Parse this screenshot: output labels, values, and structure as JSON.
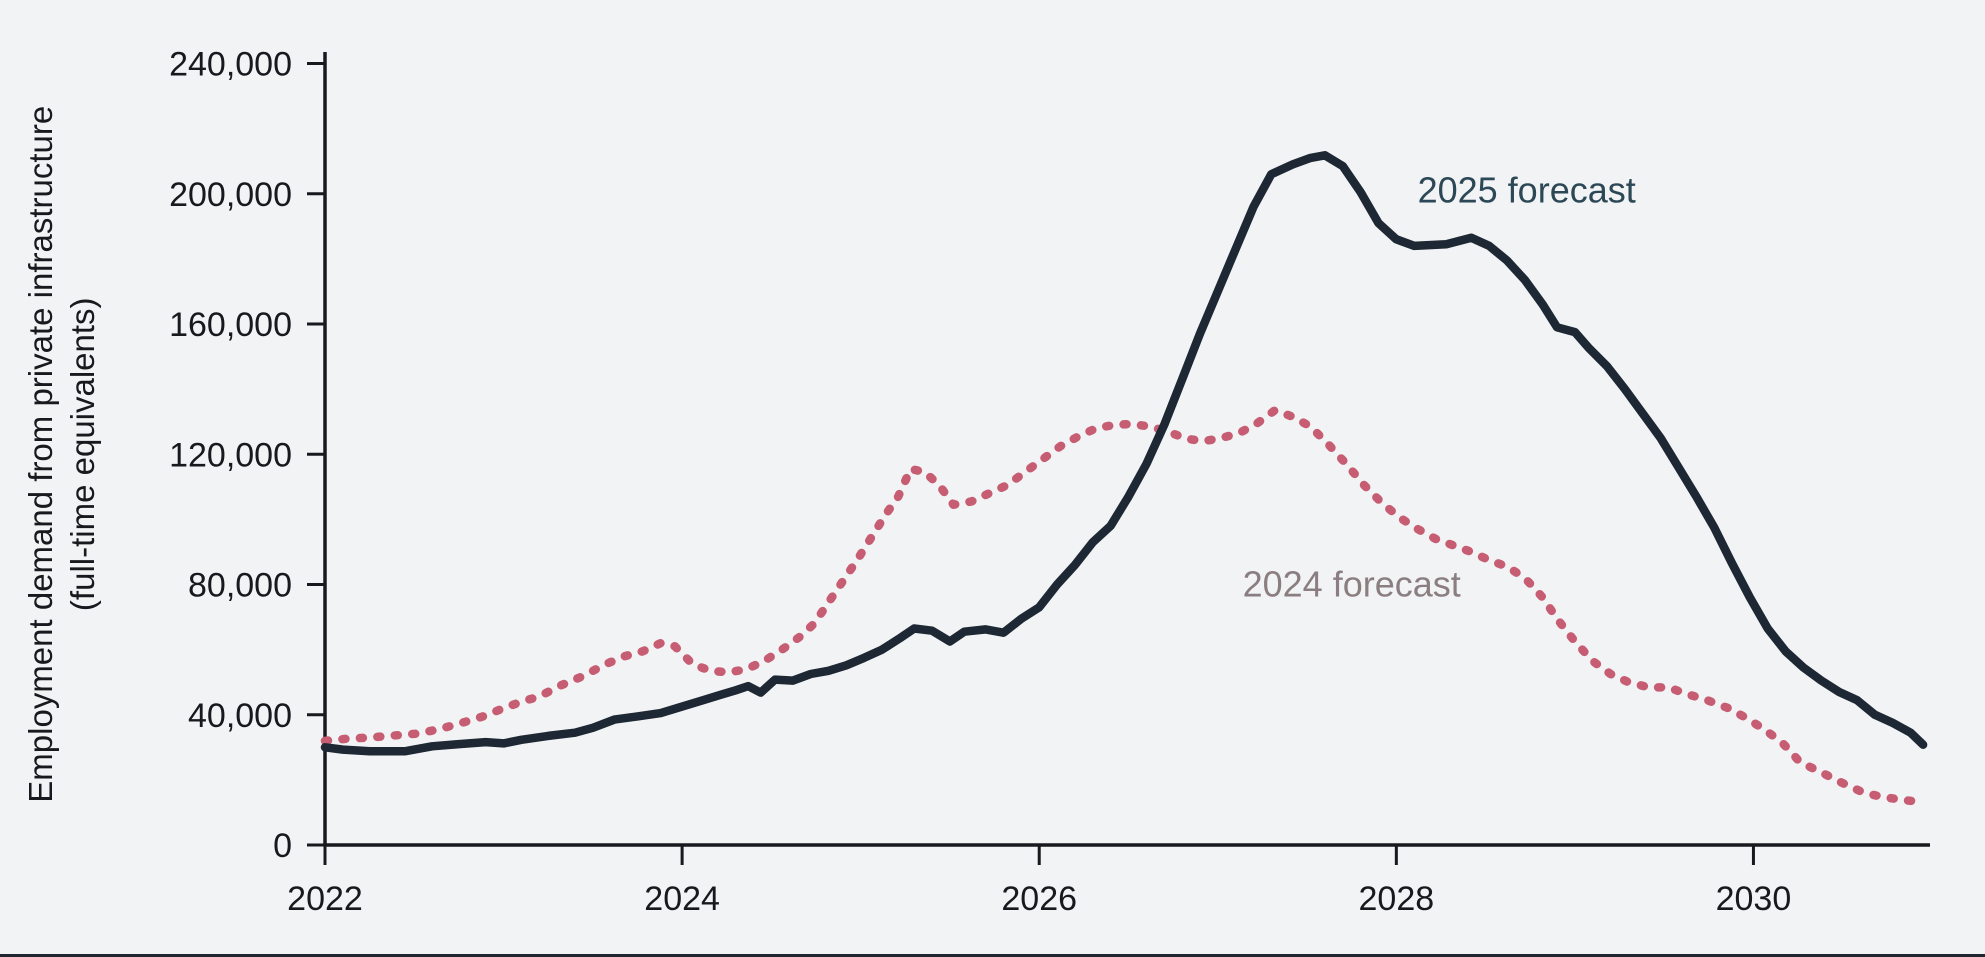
{
  "figure": {
    "background": "#f2f3f4",
    "bottom_border_color": "#20262e"
  },
  "chart_data": {
    "type": "line",
    "title": "",
    "xlabel": "",
    "ylabel_lines": [
      "Employment demand from private infrastructure",
      "(full-time equivalents)"
    ],
    "xlim": [
      2022,
      2031
    ],
    "ylim": [
      0,
      240000
    ],
    "grid": false,
    "legend_position": "inline-labels",
    "axis_color": "#16191d",
    "text_color": "#16191d",
    "x_ticks": [
      {
        "value": 2022,
        "label": "2022"
      },
      {
        "value": 2024,
        "label": "2024"
      },
      {
        "value": 2026,
        "label": "2026"
      },
      {
        "value": 2028,
        "label": "2028"
      },
      {
        "value": 2030,
        "label": "2030"
      }
    ],
    "y_ticks": [
      {
        "value": 0,
        "label": "0"
      },
      {
        "value": 40000,
        "label": "40,000"
      },
      {
        "value": 80000,
        "label": "80,000"
      },
      {
        "value": 120000,
        "label": "120,000"
      },
      {
        "value": 160000,
        "label": "160,000"
      },
      {
        "value": 200000,
        "label": "200,000"
      },
      {
        "value": 240000,
        "label": "240,000"
      }
    ],
    "series": [
      {
        "name": "2024 forecast",
        "style": "dotted",
        "color": "#c65d72",
        "points": [
          [
            2022.0,
            32000
          ],
          [
            2022.12,
            32600
          ],
          [
            2022.25,
            33000
          ],
          [
            2022.4,
            33700
          ],
          [
            2022.52,
            34200
          ],
          [
            2022.64,
            35600
          ],
          [
            2022.76,
            37400
          ],
          [
            2022.88,
            39400
          ],
          [
            2023.0,
            42000
          ],
          [
            2023.1,
            44000
          ],
          [
            2023.2,
            45600
          ],
          [
            2023.32,
            49000
          ],
          [
            2023.45,
            52000
          ],
          [
            2023.57,
            55500
          ],
          [
            2023.68,
            58000
          ],
          [
            2023.78,
            59500
          ],
          [
            2023.88,
            62000
          ],
          [
            2023.96,
            61000
          ],
          [
            2024.06,
            55500
          ],
          [
            2024.16,
            53500
          ],
          [
            2024.26,
            53000
          ],
          [
            2024.36,
            54000
          ],
          [
            2024.46,
            56500
          ],
          [
            2024.56,
            60000
          ],
          [
            2024.66,
            64000
          ],
          [
            2024.74,
            68000
          ],
          [
            2024.82,
            74500
          ],
          [
            2024.9,
            81000
          ],
          [
            2024.98,
            87500
          ],
          [
            2025.06,
            94500
          ],
          [
            2025.14,
            101500
          ],
          [
            2025.21,
            107000
          ],
          [
            2025.28,
            115500
          ],
          [
            2025.36,
            114500
          ],
          [
            2025.44,
            110500
          ],
          [
            2025.52,
            104500
          ],
          [
            2025.62,
            105500
          ],
          [
            2025.72,
            108000
          ],
          [
            2025.82,
            110500
          ],
          [
            2025.92,
            114500
          ],
          [
            2026.02,
            118500
          ],
          [
            2026.12,
            122500
          ],
          [
            2026.22,
            125500
          ],
          [
            2026.32,
            128000
          ],
          [
            2026.42,
            129000
          ],
          [
            2026.52,
            129300
          ],
          [
            2026.62,
            128500
          ],
          [
            2026.72,
            127000
          ],
          [
            2026.82,
            124800
          ],
          [
            2026.92,
            124000
          ],
          [
            2027.02,
            125000
          ],
          [
            2027.12,
            126500
          ],
          [
            2027.22,
            129500
          ],
          [
            2027.32,
            133500
          ],
          [
            2027.42,
            131500
          ],
          [
            2027.52,
            128500
          ],
          [
            2027.62,
            123000
          ],
          [
            2027.72,
            117000
          ],
          [
            2027.82,
            110500
          ],
          [
            2027.92,
            105000
          ],
          [
            2028.02,
            100500
          ],
          [
            2028.12,
            97000
          ],
          [
            2028.22,
            94000
          ],
          [
            2028.32,
            92000
          ],
          [
            2028.42,
            90000
          ],
          [
            2028.52,
            87500
          ],
          [
            2028.62,
            85500
          ],
          [
            2028.72,
            82000
          ],
          [
            2028.82,
            76000
          ],
          [
            2028.9,
            69500
          ],
          [
            2029.0,
            62500
          ],
          [
            2029.1,
            56500
          ],
          [
            2029.2,
            52500
          ],
          [
            2029.3,
            50000
          ],
          [
            2029.42,
            48300
          ],
          [
            2029.52,
            48500
          ],
          [
            2029.62,
            46500
          ],
          [
            2029.74,
            44500
          ],
          [
            2029.86,
            42000
          ],
          [
            2029.96,
            39000
          ],
          [
            2030.06,
            35500
          ],
          [
            2030.16,
            31500
          ],
          [
            2030.26,
            25500
          ],
          [
            2030.38,
            22300
          ],
          [
            2030.5,
            19000
          ],
          [
            2030.62,
            16000
          ],
          [
            2030.72,
            14800
          ],
          [
            2030.84,
            13800
          ],
          [
            2030.93,
            13300
          ]
        ]
      },
      {
        "name": "2025 forecast",
        "style": "solid",
        "color": "#1d2834",
        "points": [
          [
            2022.0,
            30000
          ],
          [
            2022.1,
            29300
          ],
          [
            2022.25,
            28800
          ],
          [
            2022.45,
            28800
          ],
          [
            2022.6,
            30300
          ],
          [
            2022.75,
            31000
          ],
          [
            2022.9,
            31600
          ],
          [
            2023.0,
            31200
          ],
          [
            2023.1,
            32300
          ],
          [
            2023.25,
            33500
          ],
          [
            2023.4,
            34500
          ],
          [
            2023.5,
            36000
          ],
          [
            2023.62,
            38500
          ],
          [
            2023.75,
            39500
          ],
          [
            2023.88,
            40500
          ],
          [
            2024.0,
            42500
          ],
          [
            2024.12,
            44500
          ],
          [
            2024.22,
            46200
          ],
          [
            2024.3,
            47500
          ],
          [
            2024.37,
            48800
          ],
          [
            2024.44,
            46800
          ],
          [
            2024.52,
            50800
          ],
          [
            2024.62,
            50500
          ],
          [
            2024.72,
            52500
          ],
          [
            2024.82,
            53500
          ],
          [
            2024.92,
            55200
          ],
          [
            2025.02,
            57500
          ],
          [
            2025.12,
            60000
          ],
          [
            2025.22,
            63500
          ],
          [
            2025.3,
            66500
          ],
          [
            2025.4,
            65800
          ],
          [
            2025.5,
            62500
          ],
          [
            2025.58,
            65500
          ],
          [
            2025.7,
            66200
          ],
          [
            2025.8,
            65200
          ],
          [
            2025.9,
            69500
          ],
          [
            2026.0,
            73000
          ],
          [
            2026.1,
            80000
          ],
          [
            2026.2,
            86000
          ],
          [
            2026.3,
            93000
          ],
          [
            2026.4,
            98000
          ],
          [
            2026.5,
            107000
          ],
          [
            2026.6,
            117000
          ],
          [
            2026.7,
            129000
          ],
          [
            2026.8,
            143000
          ],
          [
            2026.9,
            157000
          ],
          [
            2027.0,
            170000
          ],
          [
            2027.1,
            183000
          ],
          [
            2027.2,
            196000
          ],
          [
            2027.3,
            206000
          ],
          [
            2027.42,
            209000
          ],
          [
            2027.52,
            211000
          ],
          [
            2027.6,
            211800
          ],
          [
            2027.7,
            208500
          ],
          [
            2027.8,
            200500
          ],
          [
            2027.9,
            191000
          ],
          [
            2028.0,
            186000
          ],
          [
            2028.1,
            184000
          ],
          [
            2028.28,
            184500
          ],
          [
            2028.42,
            186500
          ],
          [
            2028.52,
            184000
          ],
          [
            2028.62,
            179500
          ],
          [
            2028.72,
            173500
          ],
          [
            2028.82,
            166000
          ],
          [
            2028.9,
            159000
          ],
          [
            2029.0,
            157500
          ],
          [
            2029.08,
            152500
          ],
          [
            2029.18,
            147000
          ],
          [
            2029.28,
            140000
          ],
          [
            2029.38,
            132500
          ],
          [
            2029.48,
            125000
          ],
          [
            2029.58,
            116000
          ],
          [
            2029.68,
            107000
          ],
          [
            2029.78,
            97500
          ],
          [
            2029.88,
            86500
          ],
          [
            2029.98,
            76000
          ],
          [
            2030.08,
            66500
          ],
          [
            2030.18,
            59500
          ],
          [
            2030.28,
            54500
          ],
          [
            2030.38,
            50500
          ],
          [
            2030.48,
            47000
          ],
          [
            2030.58,
            44500
          ],
          [
            2030.68,
            40000
          ],
          [
            2030.78,
            37500
          ],
          [
            2030.88,
            34500
          ],
          [
            2030.95,
            30800
          ]
        ]
      }
    ],
    "annotations": [
      {
        "text": "2025 forecast",
        "x": 2028.73,
        "y": 201000,
        "color": "#2c4857"
      },
      {
        "text": "2024 forecast",
        "x": 2027.75,
        "y": 80000,
        "color": "#8b7e81"
      }
    ]
  }
}
